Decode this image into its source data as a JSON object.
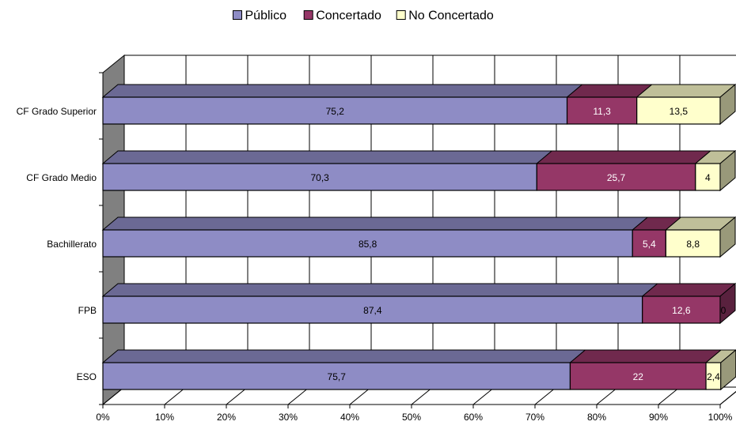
{
  "chart_data": {
    "type": "bar",
    "orientation": "horizontal",
    "stacked": "100%",
    "three_d": true,
    "categories": [
      "CF Grado Superior",
      "CF Grado Medio",
      "Bachillerato",
      "FPB",
      "ESO"
    ],
    "series": [
      {
        "name": "Público",
        "values": [
          75.2,
          70.3,
          85.8,
          87.4,
          75.7
        ],
        "color": "#8E8CC5",
        "label_color": "#000000"
      },
      {
        "name": "Concertado",
        "values": [
          11.3,
          25.7,
          5.4,
          12.6,
          22
        ],
        "color": "#953767",
        "label_color": "#ffffff"
      },
      {
        "name": "No Concertado",
        "values": [
          13.5,
          4,
          8.8,
          0,
          2.4
        ],
        "color": "#FFFFCC",
        "label_color": "#000000"
      }
    ],
    "data_labels": [
      [
        "75,2",
        "11,3",
        "13,5"
      ],
      [
        "70,3",
        "25,7",
        "4"
      ],
      [
        "85,8",
        "5,4",
        "8,8"
      ],
      [
        "87,4",
        "12,6",
        "0"
      ],
      [
        "75,7",
        "22",
        "2,4"
      ]
    ],
    "xticks": [
      "0%",
      "10%",
      "20%",
      "30%",
      "40%",
      "50%",
      "60%",
      "70%",
      "80%",
      "90%",
      "100%"
    ],
    "xlim": [
      0,
      100
    ],
    "grid": true,
    "legend_position": "top",
    "title": "",
    "xlabel": "",
    "ylabel": "",
    "colors": {
      "wall_side": "#808080",
      "grid": "#000000",
      "background": "#ffffff"
    }
  }
}
